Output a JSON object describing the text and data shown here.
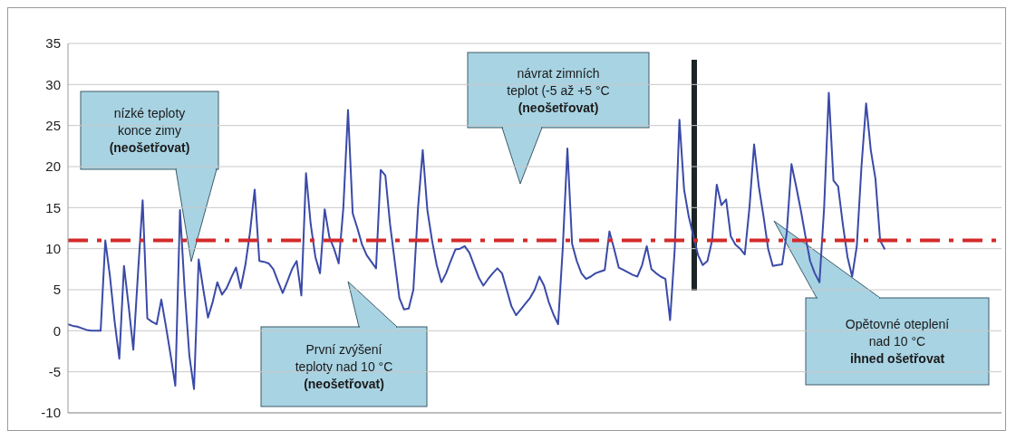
{
  "chart_data": {
    "type": "line",
    "categories": [
      null,
      null,
      null,
      null,
      null,
      null,
      null,
      null,
      null,
      null,
      null,
      null,
      null,
      null,
      null,
      null,
      null,
      null,
      null,
      null,
      null,
      null,
      null,
      null,
      null,
      null,
      null,
      null,
      null,
      null,
      null,
      null,
      null,
      null,
      null,
      null,
      null,
      null,
      null,
      null,
      null,
      null,
      null,
      null,
      null,
      null,
      null,
      null,
      null,
      null,
      null,
      null,
      null,
      null,
      null,
      null,
      null,
      null,
      null,
      null,
      null,
      null,
      null,
      null,
      null,
      null,
      null,
      null,
      null,
      null,
      null,
      null,
      null,
      null,
      null,
      null,
      null,
      null,
      null,
      null,
      null,
      null,
      null,
      null,
      null,
      null,
      null,
      null,
      null,
      null,
      null,
      null,
      null,
      null,
      null,
      null,
      null,
      null,
      null,
      null,
      null,
      null,
      null,
      null,
      null,
      null,
      null,
      null,
      null,
      null,
      null,
      null,
      null,
      null,
      null,
      null,
      null,
      null,
      null,
      null,
      null,
      null,
      null,
      null,
      null,
      null,
      null,
      null,
      null,
      null,
      null,
      null,
      null,
      null,
      null,
      null,
      null,
      null,
      null,
      null,
      null,
      null,
      null,
      null,
      null,
      null,
      null,
      null,
      null,
      null,
      null,
      null,
      null,
      null,
      null,
      null,
      null,
      null,
      null,
      null,
      null,
      null,
      null,
      null,
      null,
      null,
      null,
      null,
      null,
      null,
      null,
      null,
      null,
      null,
      null,
      null,
      null,
      null,
      null,
      null,
      null,
      null,
      null,
      null,
      null,
      null,
      null,
      null,
      null,
      null,
      null,
      null,
      null,
      null,
      null,
      null,
      null,
      null,
      null,
      null,
      null
    ],
    "series": [
      {
        "color": "#3a4aa8",
        "values": [
          0.8,
          0.6,
          0.5,
          0.3,
          0.1,
          0,
          0,
          0,
          11,
          6.6,
          1.1,
          -3.4,
          7.9,
          3,
          -2.3,
          7,
          15.9,
          1.5,
          1.1,
          0.8,
          3.8,
          0.5,
          -3,
          -6.7,
          14.7,
          5,
          -3,
          -7.1,
          8.7,
          5,
          1.6,
          3.5,
          5.9,
          4.4,
          5.2,
          6.5,
          7.7,
          5.2,
          8,
          12,
          17.2,
          8.5,
          8.4,
          8.2,
          7.5,
          6,
          4.6,
          6,
          7.5,
          8.5,
          4.3,
          19.2,
          13,
          9,
          7.0,
          14.8,
          11.4,
          10,
          8.2,
          15,
          26.9,
          14.3,
          12.5,
          10.5,
          9.2,
          8.4,
          7.6,
          19.6,
          18.9,
          13,
          8.5,
          4,
          2.6,
          2.7,
          5,
          15,
          22.0,
          14.7,
          11,
          8,
          5.9,
          7,
          8.5,
          9.9,
          10,
          10.3,
          9.5,
          8,
          6.5,
          5.5,
          6.3,
          7,
          7.6,
          7,
          5,
          3,
          1.9,
          2.6,
          3.3,
          4,
          5,
          6.6,
          5.5,
          3.5,
          2,
          0.8,
          10,
          22.2,
          10.6,
          8.5,
          7,
          6.3,
          6.6,
          7,
          7.2,
          7.4,
          12.1,
          10,
          7.7,
          7.4,
          7.1,
          6.8,
          6.6,
          8,
          10.3,
          7.5,
          7,
          6.6,
          6.3,
          1.3,
          10,
          25.7,
          17.2,
          13.9,
          11.5,
          9.2,
          8,
          8.5,
          11,
          17.8,
          15.3,
          16,
          11.5,
          10.5,
          10,
          9.3,
          15,
          22.7,
          17.6,
          14,
          10,
          7.9,
          8,
          8.1,
          12,
          20.3,
          17.6,
          14.7,
          11.5,
          8.5,
          7,
          5.9,
          15,
          29.0,
          18.3,
          17.6,
          13,
          9,
          6.6,
          10.3,
          20,
          27.7,
          22,
          18.5,
          11,
          9.9,
          null,
          null,
          null,
          null,
          null,
          null,
          null,
          null,
          null,
          null,
          null,
          null,
          null,
          null,
          null,
          null,
          null,
          null,
          null,
          null,
          null,
          null,
          null,
          null,
          null
        ]
      }
    ],
    "ylim": [
      -10,
      35
    ],
    "yticks": [
      -10,
      -5,
      0,
      5,
      10,
      15,
      20,
      25,
      30,
      35
    ],
    "grid": "y",
    "marker": "none",
    "line_style": "solid",
    "ref_lines": [
      {
        "axis": "y",
        "value": 11,
        "color": "#d42a2a",
        "line_style": "dashed"
      }
    ],
    "annotations": [
      "nízké teploty\nkonce zimy\n(neošetřovat)",
      "První zvýšení\nteploty nad 10 °C\n(neošetřovat)",
      "návrat zimních\nteplot (-5 až +5 °C\n(neošetřovat)",
      "Opětovné oteplení\nnad 10 °C\nihned ošetřovat"
    ]
  }
}
